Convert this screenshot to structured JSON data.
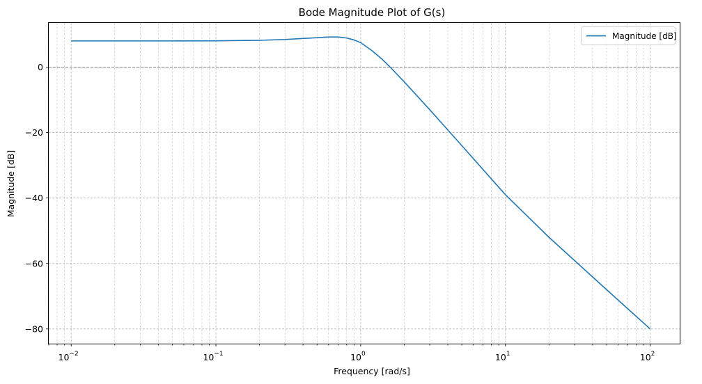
{
  "chart_data": {
    "type": "line",
    "title": "Bode Magnitude Plot of G(s)",
    "xlabel": "Frequency [rad/s]",
    "ylabel": "Magnitude [dB]",
    "x_scale": "log",
    "xlim": [
      0.007,
      160
    ],
    "ylim": [
      -84.5,
      13.5
    ],
    "x_ticks": [
      {
        "base": "10",
        "exp": "−2",
        "value": 0.01
      },
      {
        "base": "10",
        "exp": "−1",
        "value": 0.1
      },
      {
        "base": "10",
        "exp": "0",
        "value": 1
      },
      {
        "base": "10",
        "exp": "1",
        "value": 10
      },
      {
        "base": "10",
        "exp": "2",
        "value": 100
      }
    ],
    "y_ticks": [
      {
        "label": "0",
        "value": 0
      },
      {
        "label": "−20",
        "value": -20
      },
      {
        "label": "−40",
        "value": -40
      },
      {
        "label": "−60",
        "value": -60
      },
      {
        "label": "−80",
        "value": -80
      }
    ],
    "grid": true,
    "grid_minor": true,
    "reference_line_y": 0,
    "legend_position": "top-right",
    "series": [
      {
        "name": "Magnitude [dB]",
        "color": "#1f77b4",
        "x": [
          0.01,
          0.02,
          0.05,
          0.1,
          0.2,
          0.3,
          0.4,
          0.5,
          0.6,
          0.7,
          0.8,
          0.9,
          1.0,
          1.2,
          1.4,
          1.6,
          2.0,
          3.0,
          5.0,
          10,
          20,
          50,
          100
        ],
        "y": [
          8.0,
          8.0,
          8.0,
          8.05,
          8.2,
          8.45,
          8.75,
          9.0,
          9.2,
          9.2,
          8.9,
          8.3,
          7.5,
          5.0,
          2.5,
          0.0,
          -4.5,
          -13.0,
          -24.0,
          -39.0,
          -52.0,
          -68.0,
          -80.0
        ]
      }
    ]
  },
  "colors": {
    "grid": "#b0b0b0",
    "axis": "#000000",
    "reference": "#808080"
  }
}
